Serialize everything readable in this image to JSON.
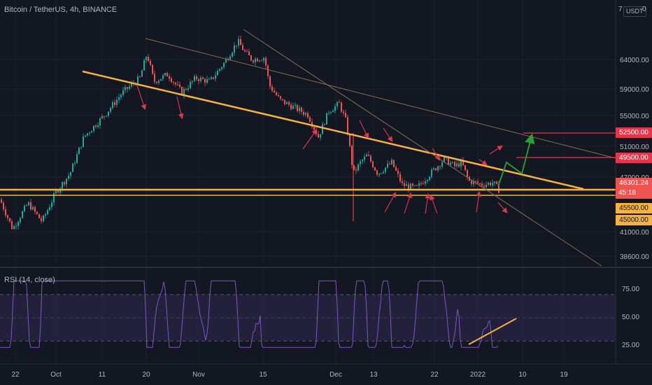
{
  "chart": {
    "symbol": "Bitcoin / TetherUS, 4h, BINANCE",
    "currency": "USDT",
    "top_axis_labels": [
      "7",
      "0"
    ],
    "price_axis": [
      "64000.00",
      "59000.00",
      "55000.00",
      "51000.00",
      "47000.00",
      "41000.00",
      "38600.00"
    ],
    "date_axis": [
      "22",
      "Oct",
      "11",
      "20",
      "Nov",
      "15",
      "Dec",
      "13",
      "22",
      "2022",
      "10",
      "19"
    ],
    "current_price": "46301.24",
    "countdown": "45:18",
    "price_tags": [
      {
        "label": "52500.00",
        "style": "red"
      },
      {
        "label": "49500.00",
        "style": "red"
      },
      {
        "label": "45500.00",
        "style": "orange"
      },
      {
        "label": "45000.00",
        "style": "orange"
      }
    ]
  },
  "rsi": {
    "label": "RSI (14, close)",
    "levels": [
      "75.00",
      "50.00",
      "25.00"
    ]
  },
  "colors": {
    "background": "#131722",
    "grid": "#1e222d",
    "up": "#26a69a",
    "down": "#ef5350",
    "trendline": "#f6b142",
    "arrow": "#e0384a",
    "target": "#2e9e34",
    "rsi_line": "#7e57c2",
    "axis_text": "#b2b5be"
  },
  "chart_data": {
    "type": "candlestick",
    "title": "Bitcoin / TetherUS, 4h, BINANCE",
    "y_axis_ticks": [
      64000,
      59000,
      55000,
      51000,
      47000,
      41000,
      38600
    ],
    "x_axis_ticks": [
      "22",
      "Oct",
      "11",
      "20",
      "Nov",
      "15",
      "Dec",
      "13",
      "22",
      "2022",
      "10",
      "19"
    ],
    "last_price": 46301.24,
    "support_levels": [
      45500,
      45000
    ],
    "resistance_targets": [
      49500,
      52500
    ],
    "rsi_levels": [
      75,
      50,
      25
    ]
  }
}
